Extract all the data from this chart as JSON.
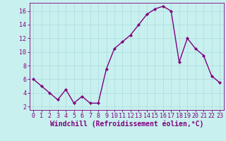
{
  "x": [
    0,
    1,
    2,
    3,
    4,
    5,
    6,
    7,
    8,
    9,
    10,
    11,
    12,
    13,
    14,
    15,
    16,
    17,
    18,
    19,
    20,
    21,
    22,
    23
  ],
  "y": [
    6,
    5,
    4,
    3,
    4.5,
    2.5,
    3.5,
    2.5,
    2.5,
    7.5,
    10.5,
    11.5,
    12.5,
    14,
    15.5,
    16.3,
    16.7,
    16,
    8.5,
    12,
    10.5,
    9.5,
    6.5,
    5.5
  ],
  "line_color": "#800080",
  "marker": "D",
  "marker_size": 2.2,
  "bg_color": "#c8f0ee",
  "grid_color": "#aadddd",
  "xlabel": "Windchill (Refroidissement éolien,°C)",
  "xlabel_color": "#800080",
  "tick_color": "#800080",
  "tick_label_color": "#800080",
  "xlim": [
    -0.5,
    23.5
  ],
  "ylim": [
    1.5,
    17.2
  ],
  "yticks": [
    2,
    4,
    6,
    8,
    10,
    12,
    14,
    16
  ],
  "xticks": [
    0,
    1,
    2,
    3,
    4,
    5,
    6,
    7,
    8,
    9,
    10,
    11,
    12,
    13,
    14,
    15,
    16,
    17,
    18,
    19,
    20,
    21,
    22,
    23
  ],
  "font_family": "monospace",
  "xlabel_fontsize": 7.0,
  "tick_fontsize": 6.0,
  "linewidth": 1.0
}
